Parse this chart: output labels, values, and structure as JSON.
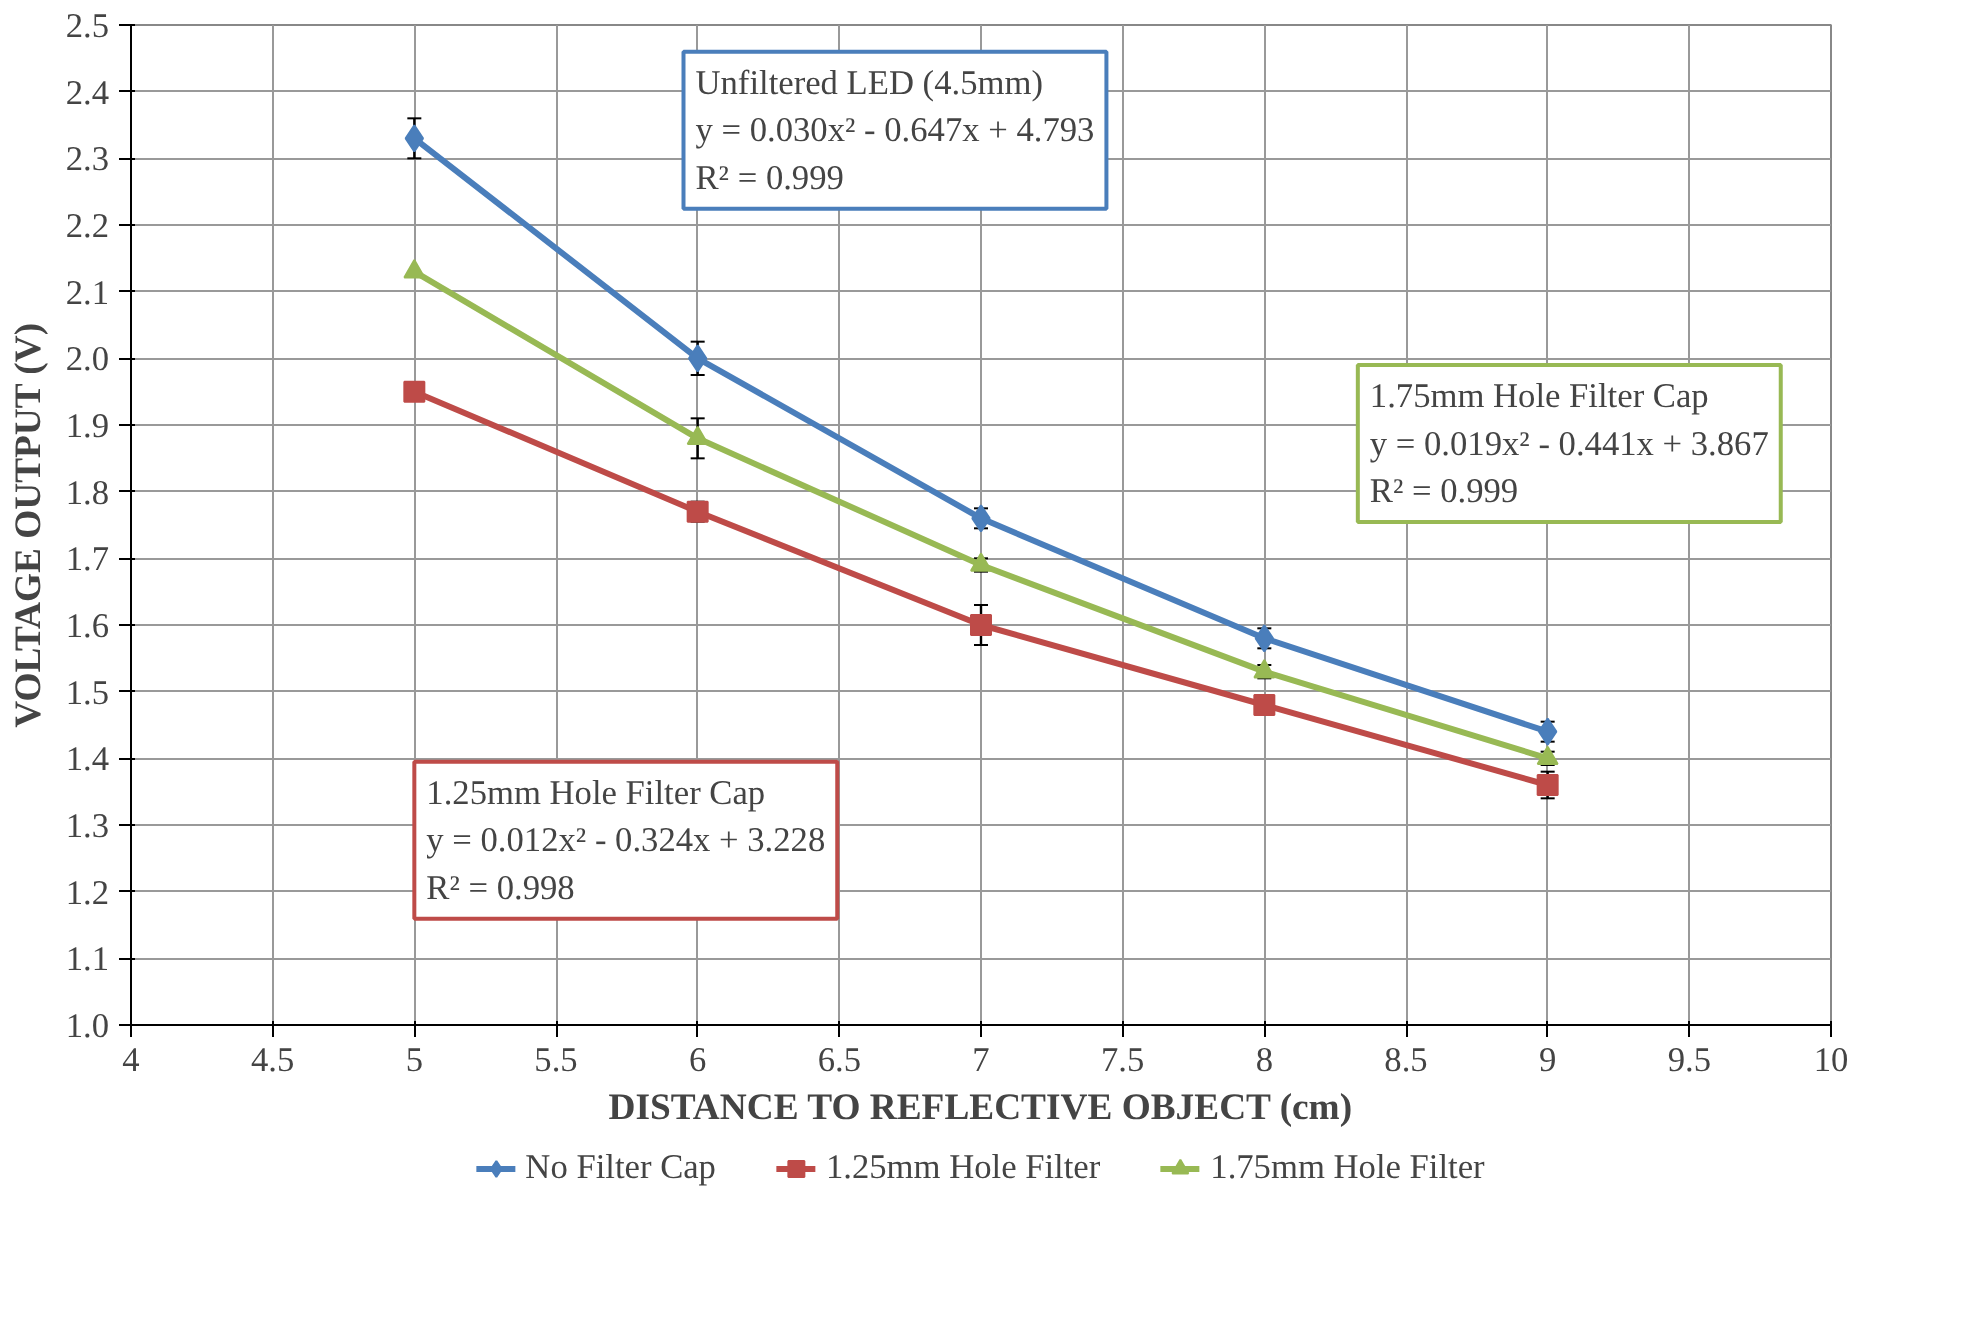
{
  "chart_data": {
    "type": "line",
    "xlabel": "DISTANCE TO REFLECTIVE OBJECT (cm)",
    "ylabel": "VOLTAGE OUTPUT (V)",
    "x": [
      5,
      6,
      7,
      8,
      9
    ],
    "series": [
      {
        "name": "No Filter Cap",
        "color": "#4a7ebb",
        "marker": "diamond",
        "values": [
          2.33,
          2.0,
          1.76,
          1.58,
          1.44
        ],
        "errors": [
          0.03,
          0.025,
          0.015,
          0.015,
          0.015
        ]
      },
      {
        "name": "1.25mm Hole Filter",
        "color": "#be4b48",
        "marker": "square",
        "values": [
          1.95,
          1.77,
          1.6,
          1.48,
          1.36
        ],
        "errors": [
          null,
          0.015,
          0.03,
          null,
          0.02
        ]
      },
      {
        "name": "1.75mm Hole Filter",
        "color": "#98b954",
        "marker": "triangle",
        "values": [
          2.13,
          1.88,
          1.69,
          1.53,
          1.4
        ],
        "errors": [
          null,
          0.03,
          0.01,
          0.01,
          0.01
        ]
      }
    ],
    "xlim": [
      4,
      10
    ],
    "xticks": [
      4,
      4.5,
      5,
      5.5,
      6,
      6.5,
      7,
      7.5,
      8,
      8.5,
      9,
      9.5,
      10
    ],
    "ylim": [
      1.0,
      2.5
    ],
    "yticks": [
      {
        "value": 1.0,
        "label": "1.0"
      },
      1.1,
      1.2,
      1.3,
      1.4,
      1.5,
      1.6,
      1.7,
      1.8,
      1.9,
      {
        "value": 2.0,
        "label": "2.0"
      },
      2.1,
      2.2,
      2.3,
      2.4,
      2.5
    ],
    "annotations": [
      "Unfiltered LED (4.5mm)\ny = 0.030x² - 0.647x + 4.793\nR² = 0.999",
      "1.75mm Hole Filter Cap\ny = 0.019x² - 0.441x + 3.867\nR² = 0.999",
      "1.25mm Hole Filter Cap\ny = 0.012x² - 0.324x + 3.228\nR² = 0.998"
    ],
    "grid": true,
    "legend": "bottom",
    "line_style": "solid"
  }
}
